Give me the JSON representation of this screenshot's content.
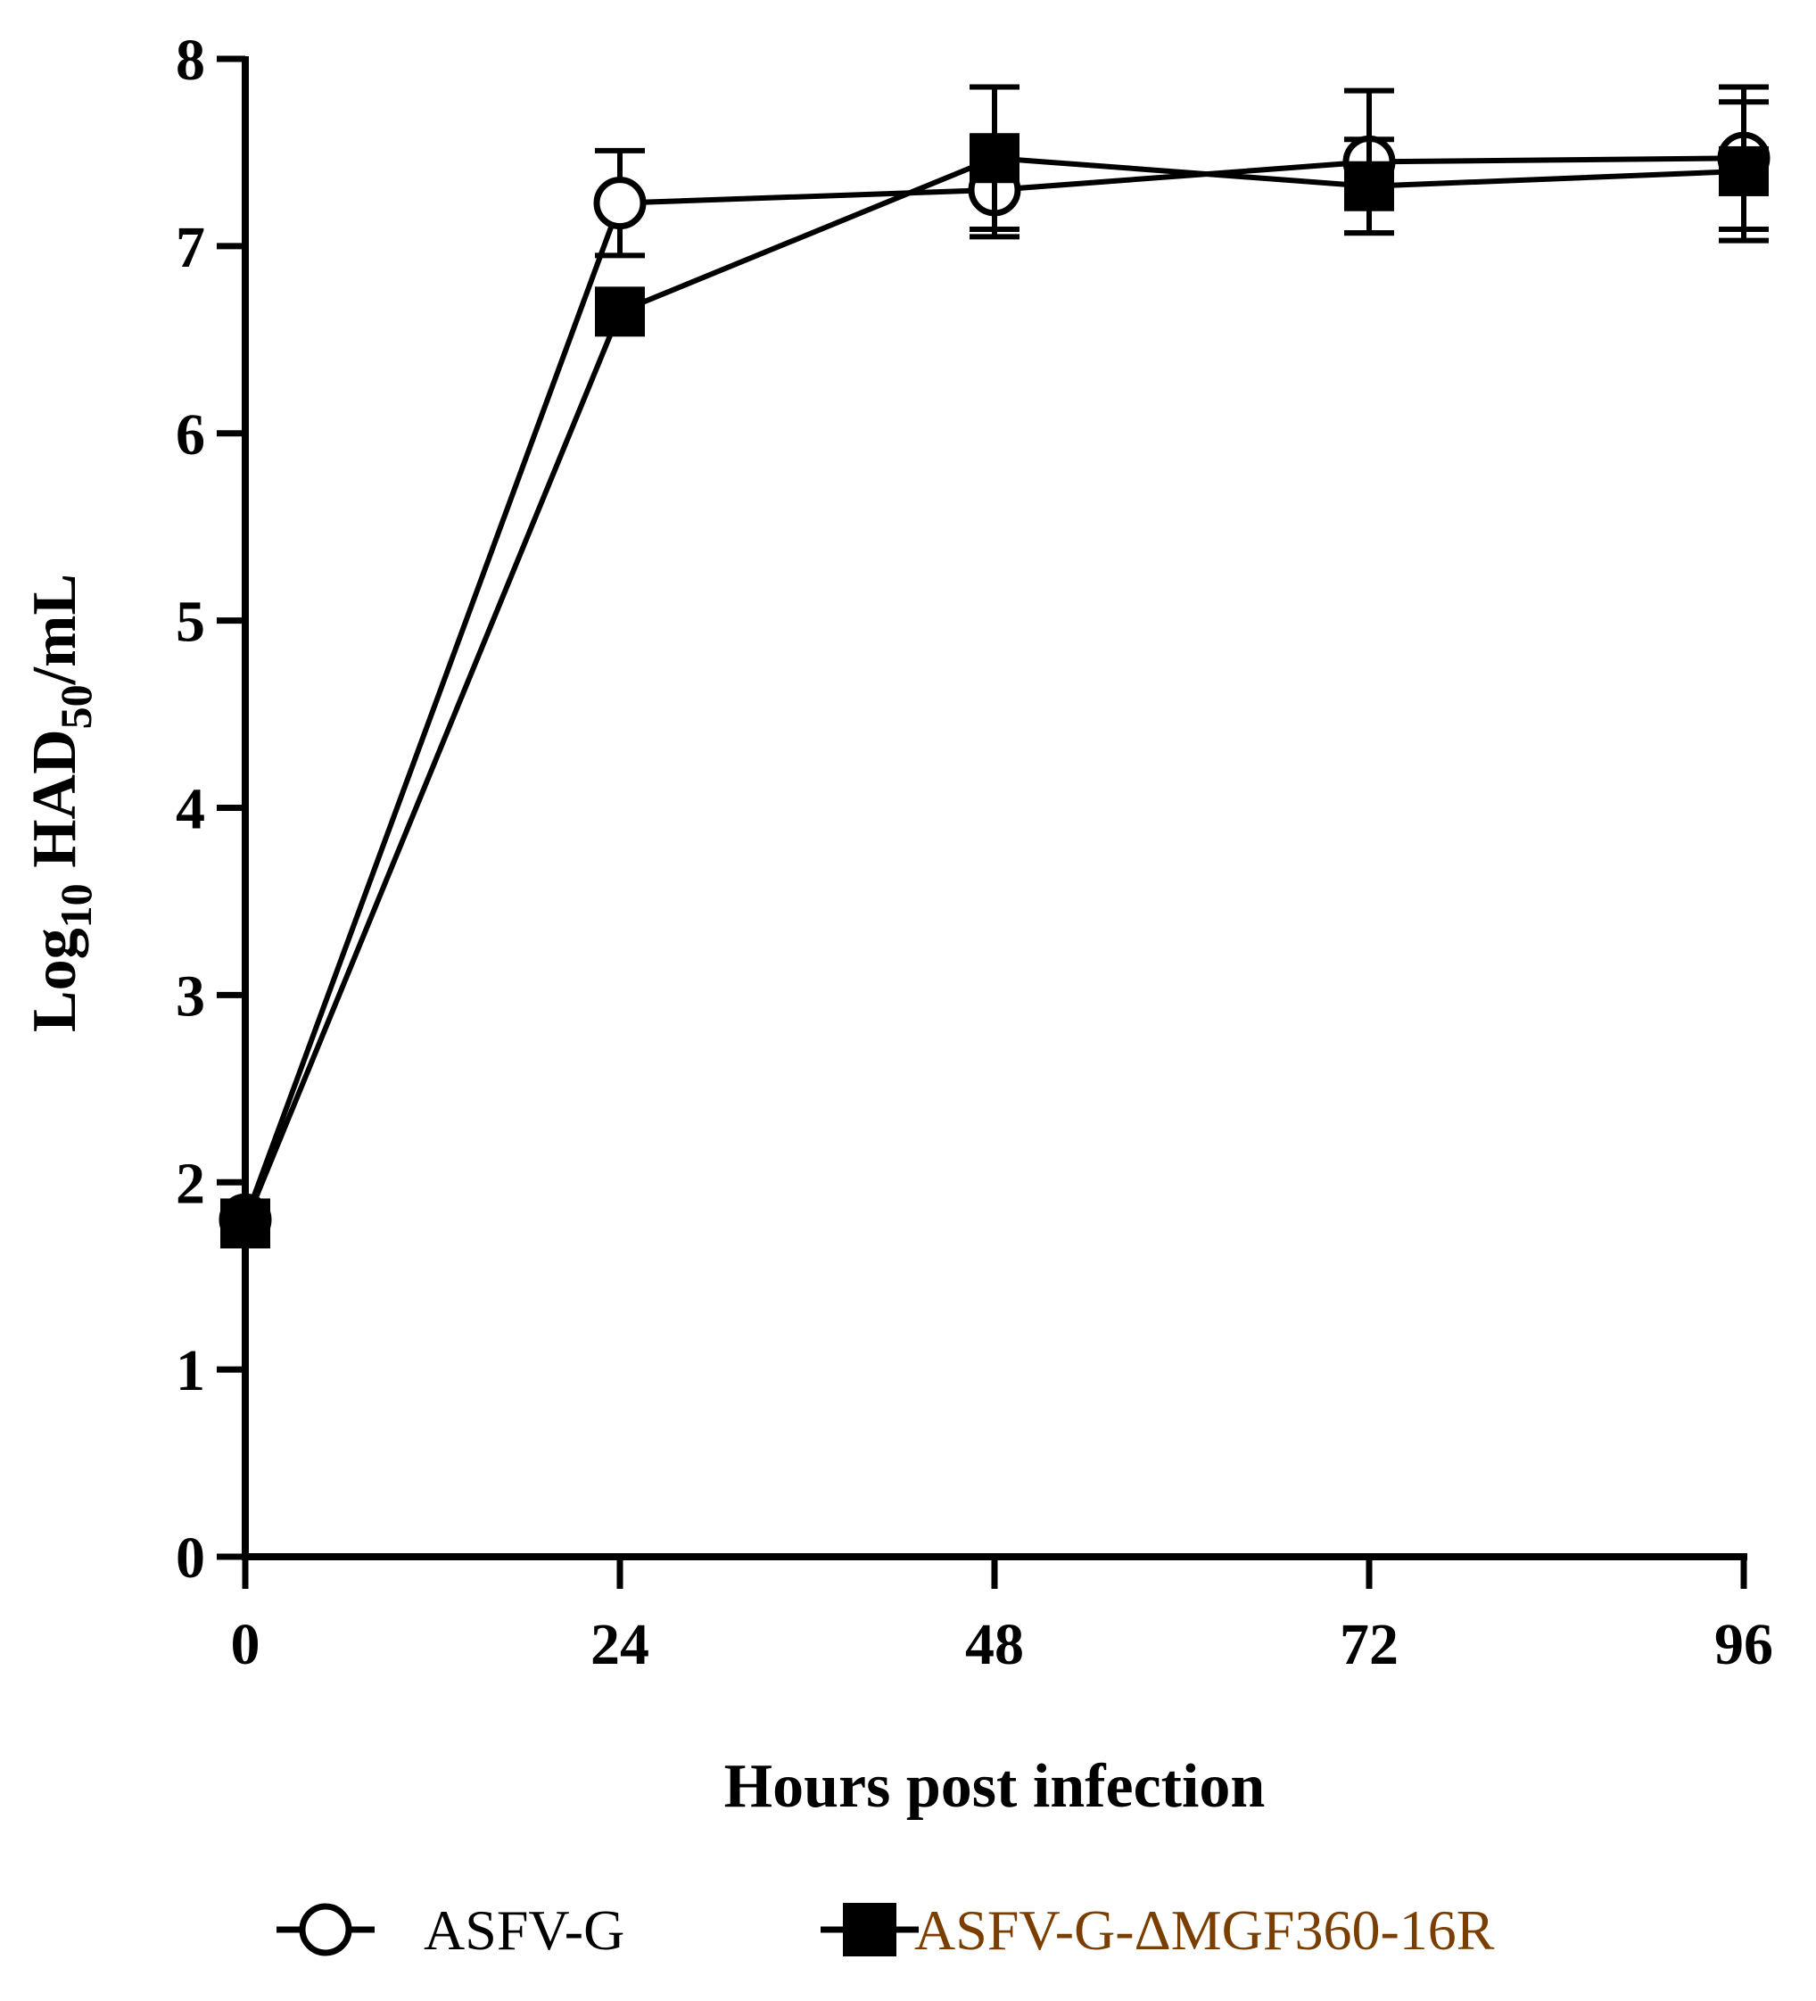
{
  "chart_data": {
    "type": "line",
    "x": [
      0,
      24,
      48,
      72,
      96
    ],
    "xlim": [
      0,
      96
    ],
    "ylim": [
      0,
      8
    ],
    "xticks": [
      "0",
      "24",
      "48",
      "72",
      "96"
    ],
    "yticks": [
      "0",
      "1",
      "2",
      "3",
      "4",
      "5",
      "6",
      "7",
      "8"
    ],
    "xlabel": "Hours post infection",
    "ylabel": "Log10 HAD50/mL",
    "ylabel_parts": {
      "a": "Log",
      "a_sub": "10",
      "b": " HAD",
      "b_sub": "50",
      "c": "/mL"
    },
    "grid": false,
    "legend_position": "bottom",
    "series": [
      {
        "name": "ASFV-G",
        "marker": "open-circle",
        "color": "#000000",
        "values": [
          1.8,
          7.23,
          7.3,
          7.45,
          7.47
        ],
        "error": [
          0.05,
          0.28,
          0.25,
          0.38,
          0.38
        ]
      },
      {
        "name": "ASFV-G-ΔMGF360-16R",
        "marker": "filled-square",
        "color": "#000000",
        "label_color": "#7a3f00",
        "values": [
          1.78,
          6.65,
          7.47,
          7.32,
          7.4
        ],
        "error": [
          0.05,
          0.05,
          0.38,
          0.25,
          0.37
        ]
      }
    ]
  }
}
